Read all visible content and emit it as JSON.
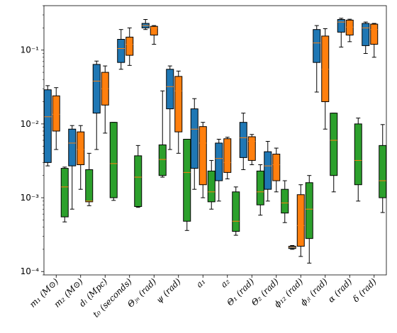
{
  "chart_data": {
    "type": "boxplot",
    "yscale": "log",
    "ylim": [
      9e-05,
      0.4
    ],
    "grid": false,
    "legend": "none",
    "categories": [
      "m₁ (M⊙)",
      "m₂ (M⊙)",
      "dₗ (Mpc)",
      "t₀ (seconds)",
      "Θⱼₙ (rad)",
      "ψ (rad)",
      "a₁",
      "a₂",
      "Θ₁ (rad)",
      "Θ₂ (rad)",
      "ϕ₁₂ (rad)",
      "ϕⱼₗ (rad)",
      "α (rad)",
      "δ (rad)"
    ],
    "yticks": [
      {
        "value": 0.0001,
        "label": "10⁻⁴"
      },
      {
        "value": 0.001,
        "label": "10⁻³"
      },
      {
        "value": 0.01,
        "label": "10⁻²"
      },
      {
        "value": 0.1,
        "label": "10⁻¹"
      }
    ],
    "series": [
      {
        "color": "#1f77b4",
        "boxes": [
          {
            "cat": 0,
            "whislo": 0.0027,
            "q1": 0.003,
            "med": 0.0125,
            "q3": 0.029,
            "whishi": 0.033
          },
          {
            "cat": 1,
            "whislo": 0.0007,
            "q1": 0.0027,
            "med": 0.0055,
            "q3": 0.0085,
            "whishi": 0.0095
          },
          {
            "cat": 2,
            "whislo": 0.0045,
            "q1": 0.014,
            "med": 0.038,
            "q3": 0.064,
            "whishi": 0.071
          },
          {
            "cat": 3,
            "whislo": 0.055,
            "q1": 0.068,
            "med": 0.105,
            "q3": 0.14,
            "whishi": 0.19
          },
          {
            "cat": 4,
            "whislo": 0.19,
            "q1": 0.2,
            "med": 0.215,
            "q3": 0.23,
            "whishi": 0.26
          },
          {
            "cat": 5,
            "whislo": 0.0045,
            "q1": 0.016,
            "med": 0.032,
            "q3": 0.055,
            "whishi": 0.061
          },
          {
            "cat": 6,
            "whislo": 0.0013,
            "q1": 0.0025,
            "med": 0.0085,
            "q3": 0.016,
            "whishi": 0.022
          },
          {
            "cat": 7,
            "whislo": 0.0009,
            "q1": 0.0017,
            "med": 0.0034,
            "q3": 0.0055,
            "whishi": 0.0062
          },
          {
            "cat": 8,
            "whislo": 0.0024,
            "q1": 0.0035,
            "med": 0.0065,
            "q3": 0.0105,
            "whishi": 0.014
          },
          {
            "cat": 9,
            "whislo": 0.0009,
            "q1": 0.0013,
            "med": 0.0027,
            "q3": 0.0042,
            "whishi": 0.0058
          },
          {
            "cat": 10,
            "whislo": 0.0002,
            "q1": 0.000205,
            "med": 0.000213,
            "q3": 0.00022,
            "whishi": 0.000225
          },
          {
            "cat": 11,
            "whislo": 0.027,
            "q1": 0.068,
            "med": 0.125,
            "q3": 0.19,
            "whishi": 0.215
          },
          {
            "cat": 12,
            "whislo": 0.11,
            "q1": 0.175,
            "med": 0.24,
            "q3": 0.26,
            "whishi": 0.27
          },
          {
            "cat": 13,
            "whislo": 0.09,
            "q1": 0.115,
            "med": 0.2,
            "q3": 0.23,
            "whishi": 0.24
          }
        ]
      },
      {
        "color": "#ff7f0e",
        "boxes": [
          {
            "cat": 0,
            "whislo": 0.0045,
            "q1": 0.008,
            "med": 0.0135,
            "q3": 0.024,
            "whishi": 0.031
          },
          {
            "cat": 1,
            "whislo": 0.0013,
            "q1": 0.0028,
            "med": 0.0045,
            "q3": 0.0078,
            "whishi": 0.0095
          },
          {
            "cat": 2,
            "whislo": 0.0075,
            "q1": 0.018,
            "med": 0.03,
            "q3": 0.05,
            "whishi": 0.061
          },
          {
            "cat": 3,
            "whislo": 0.062,
            "q1": 0.085,
            "med": 0.12,
            "q3": 0.15,
            "whishi": 0.2
          },
          {
            "cat": 4,
            "whislo": 0.12,
            "q1": 0.16,
            "med": 0.2,
            "q3": 0.21,
            "whishi": 0.215
          },
          {
            "cat": 5,
            "whislo": 0.004,
            "q1": 0.0078,
            "med": 0.028,
            "q3": 0.044,
            "whishi": 0.052
          },
          {
            "cat": 6,
            "whislo": 0.001,
            "q1": 0.0015,
            "med": 0.0055,
            "q3": 0.0092,
            "whishi": 0.0105
          },
          {
            "cat": 7,
            "whislo": 0.0018,
            "q1": 0.0022,
            "med": 0.003,
            "q3": 0.0063,
            "whishi": 0.0066
          },
          {
            "cat": 8,
            "whislo": 0.0028,
            "q1": 0.0032,
            "med": 0.0058,
            "q3": 0.0067,
            "whishi": 0.0072
          },
          {
            "cat": 9,
            "whislo": 0.0012,
            "q1": 0.0017,
            "med": 0.0028,
            "q3": 0.0039,
            "whishi": 0.0047
          },
          {
            "cat": 10,
            "whislo": 0.00016,
            "q1": 0.00022,
            "med": 0.00042,
            "q3": 0.0011,
            "whishi": 0.0015
          },
          {
            "cat": 11,
            "whislo": 0.0085,
            "q1": 0.02,
            "med": 0.055,
            "q3": 0.155,
            "whishi": 0.195
          },
          {
            "cat": 12,
            "whislo": 0.13,
            "q1": 0.16,
            "med": 0.205,
            "q3": 0.255,
            "whishi": 0.262
          },
          {
            "cat": 13,
            "whislo": 0.08,
            "q1": 0.12,
            "med": 0.19,
            "q3": 0.225,
            "whishi": 0.23
          }
        ]
      },
      {
        "color": "#2ca02c",
        "boxes": [
          {
            "cat": 0,
            "whislo": 0.00047,
            "q1": 0.00055,
            "med": 0.0014,
            "q3": 0.0025,
            "whishi": 0.0026
          },
          {
            "cat": 1,
            "whislo": 0.00078,
            "q1": 0.00088,
            "med": 0.0009,
            "q3": 0.0024,
            "whishi": 0.004
          },
          {
            "cat": 2,
            "whislo": 0.00092,
            "q1": 0.001,
            "med": 0.0029,
            "q3": 0.0105,
            "whishi": 0.0105
          },
          {
            "cat": 3,
            "whislo": 0.00074,
            "q1": 0.00076,
            "med": 0.0019,
            "q3": 0.0037,
            "whishi": 0.0051
          },
          {
            "cat": 4,
            "whislo": 0.0019,
            "q1": 0.002,
            "med": 0.0033,
            "q3": 0.0052,
            "whishi": 0.028
          },
          {
            "cat": 5,
            "whislo": 0.00036,
            "q1": 0.00048,
            "med": 0.0022,
            "q3": 0.0062,
            "whishi": 0.0062
          },
          {
            "cat": 6,
            "whislo": 0.0007,
            "q1": 0.00088,
            "med": 0.0012,
            "q3": 0.0023,
            "whishi": 0.0032
          },
          {
            "cat": 7,
            "whislo": 0.00031,
            "q1": 0.00035,
            "med": 0.00048,
            "q3": 0.0012,
            "whishi": 0.0014
          },
          {
            "cat": 8,
            "whislo": 0.00058,
            "q1": 0.0008,
            "med": 0.0012,
            "q3": 0.0023,
            "whishi": 0.0028
          },
          {
            "cat": 9,
            "whislo": 0.00046,
            "q1": 0.00062,
            "med": 0.00085,
            "q3": 0.0013,
            "whishi": 0.0017
          },
          {
            "cat": 10,
            "whislo": 0.00013,
            "q1": 0.00028,
            "med": 0.0007,
            "q3": 0.0016,
            "whishi": 0.002
          },
          {
            "cat": 11,
            "whislo": 0.0012,
            "q1": 0.002,
            "med": 0.006,
            "q3": 0.014,
            "whishi": 0.014
          },
          {
            "cat": 12,
            "whislo": 0.0009,
            "q1": 0.0015,
            "med": 0.0032,
            "q3": 0.01,
            "whishi": 0.012
          },
          {
            "cat": 13,
            "whislo": 0.00063,
            "q1": 0.001,
            "med": 0.0017,
            "q3": 0.0051,
            "whishi": 0.0098
          }
        ]
      }
    ],
    "median_color": "#ff7f0e"
  }
}
